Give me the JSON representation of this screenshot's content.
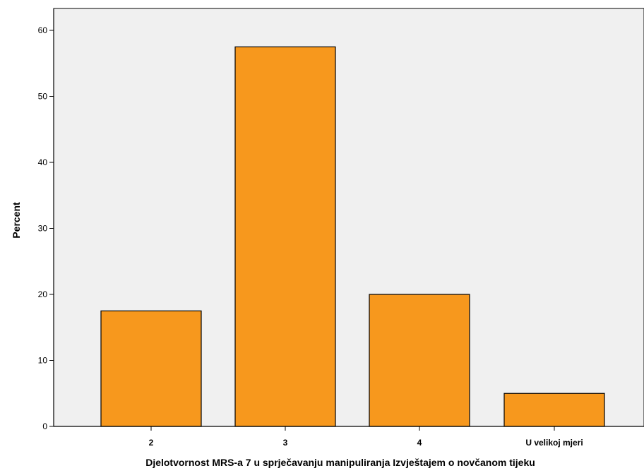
{
  "chart_data": {
    "type": "bar",
    "title": "",
    "xlabel": "Djelotvornost MRS-a 7 u sprječavanju manipuliranja Izvještajem o novčanom tijeku",
    "ylabel": "Percent",
    "categories": [
      "2",
      "3",
      "4",
      "U velikoj mjeri"
    ],
    "values": [
      17.5,
      57.5,
      20.0,
      5.0
    ],
    "ylim": [
      0,
      60
    ],
    "yticks": [
      0,
      10,
      20,
      30,
      40,
      50,
      60
    ],
    "grid": false,
    "legend": "none",
    "colors": {
      "bar_fill": "#F7981D",
      "bar_stroke": "#000000",
      "plot_background": "#F0F0F0",
      "axis": "#000000"
    }
  }
}
